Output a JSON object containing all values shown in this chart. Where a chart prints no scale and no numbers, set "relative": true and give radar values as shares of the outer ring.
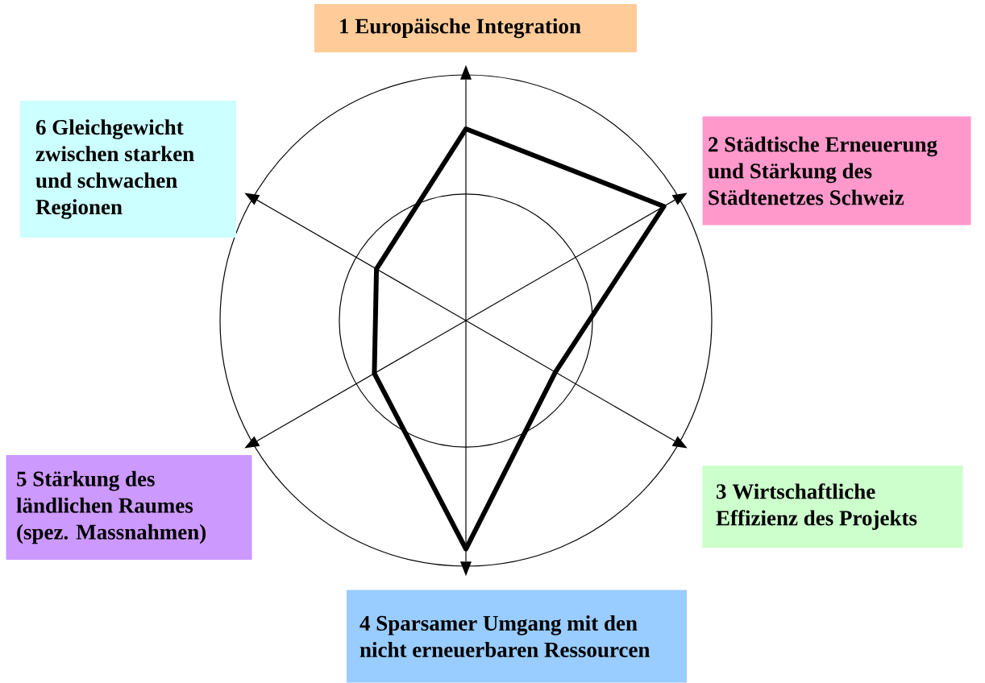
{
  "chart_data": {
    "type": "radar",
    "relative": true,
    "grid": true,
    "categories": [
      "1 Europäische Integration",
      "2 Städtische Erneuerung und Stärkung des Städtenetzes Schweiz",
      "3 Wirtschaftliche Effizienz des Projekts",
      "4 Sparsamer Umgang mit den nicht erneuerbaren Ressourcen",
      "5 Stärkung des ländlichen Raumes (spez. Massnahmen)",
      "6 Gleichgewicht zwischen starken und schwachen Regionen"
    ],
    "series": [
      {
        "color": "#000000",
        "values": [
          0.78,
          0.93,
          0.42,
          0.93,
          0.43,
          0.42
        ]
      }
    ]
  }
}
